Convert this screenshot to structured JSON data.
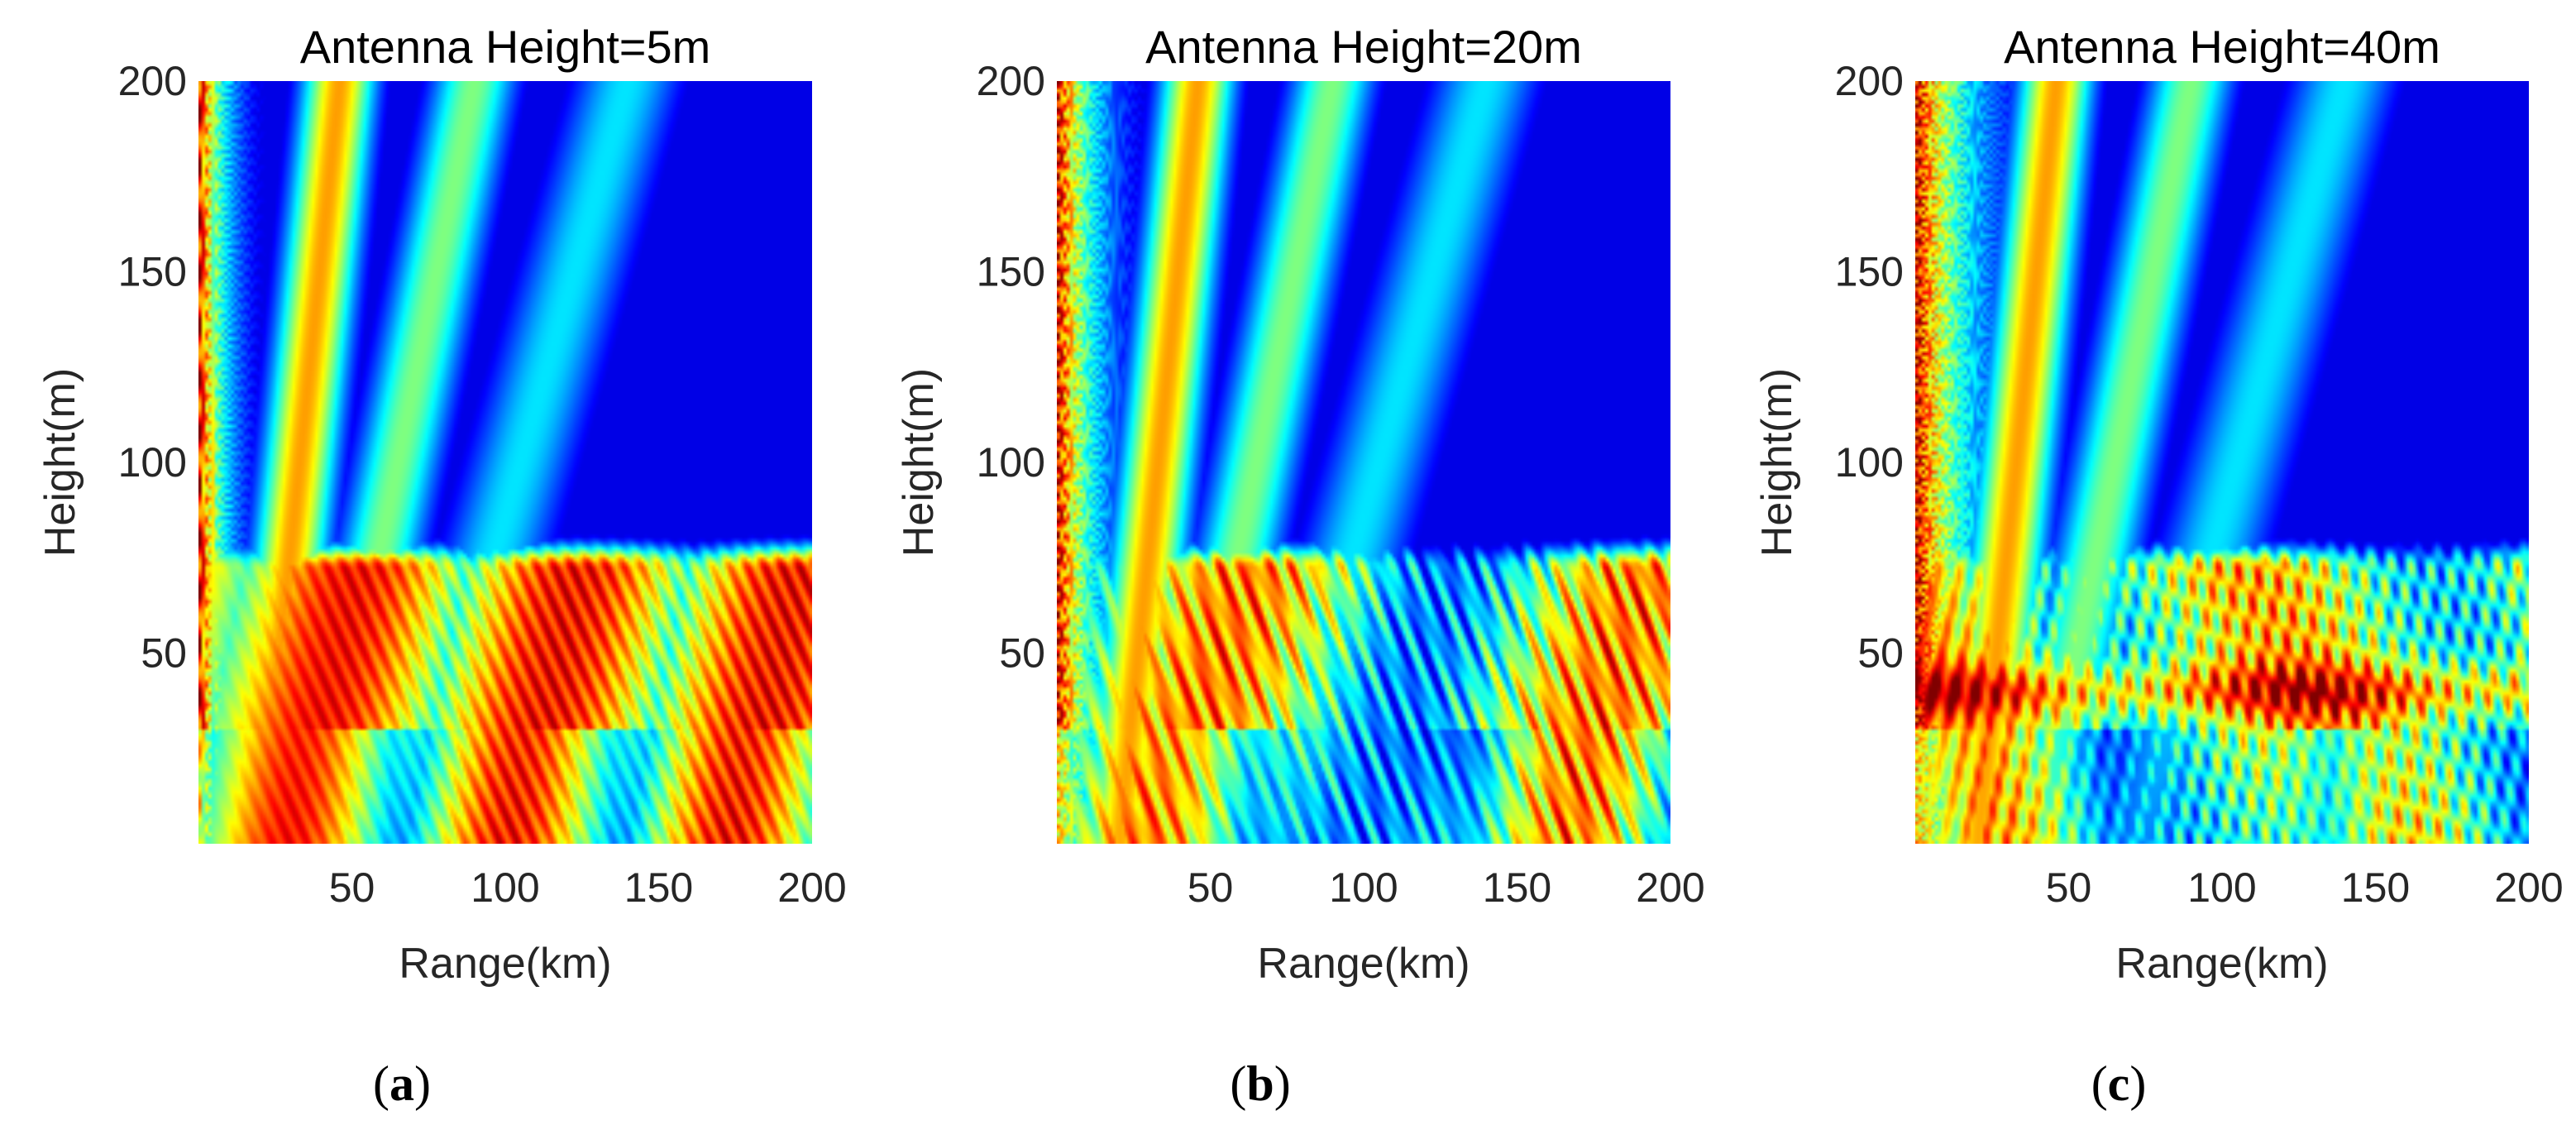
{
  "chart_data": [
    {
      "type": "heatmap",
      "title": "Antenna Height=5m",
      "subfigure_label": "a",
      "xlabel": "Range(km)",
      "ylabel": "Height(m)",
      "xlim": [
        0,
        200
      ],
      "ylim": [
        0,
        200
      ],
      "xticks": [
        50,
        100,
        150,
        200
      ],
      "yticks": [
        50,
        100,
        150,
        200
      ],
      "colormap": "jet",
      "antenna_height_m": 5
    },
    {
      "type": "heatmap",
      "title": "Antenna Height=20m",
      "subfigure_label": "b",
      "xlabel": "Range(km)",
      "ylabel": "Height(m)",
      "xlim": [
        0,
        200
      ],
      "ylim": [
        0,
        200
      ],
      "xticks": [
        50,
        100,
        150,
        200
      ],
      "yticks": [
        50,
        100,
        150,
        200
      ],
      "colormap": "jet",
      "antenna_height_m": 20
    },
    {
      "type": "heatmap",
      "title": "Antenna Height=40m",
      "subfigure_label": "c",
      "xlabel": "Range(km)",
      "ylabel": "Height(m)",
      "xlim": [
        0,
        200
      ],
      "ylim": [
        0,
        200
      ],
      "xticks": [
        50,
        100,
        150,
        200
      ],
      "yticks": [
        50,
        100,
        150,
        200
      ],
      "colormap": "jet",
      "antenna_height_m": 40
    }
  ]
}
